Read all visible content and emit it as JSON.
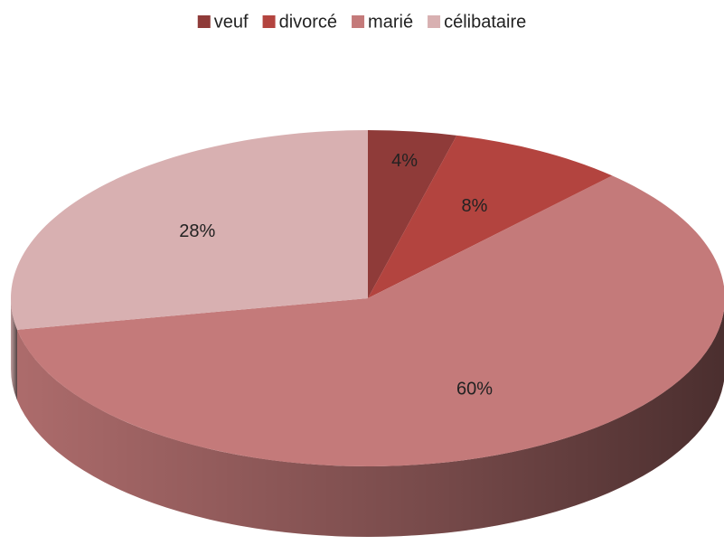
{
  "chart_data": {
    "type": "pie",
    "categories": [
      "veuf",
      "divorcé",
      "marié",
      "célibataire"
    ],
    "values": [
      4,
      8,
      60,
      28
    ],
    "value_labels": [
      "4%",
      "8%",
      "60%",
      "28%"
    ],
    "colors": [
      "#8f3b39",
      "#b3443f",
      "#c47a7a",
      "#d8b0b1"
    ],
    "legend": "top"
  }
}
